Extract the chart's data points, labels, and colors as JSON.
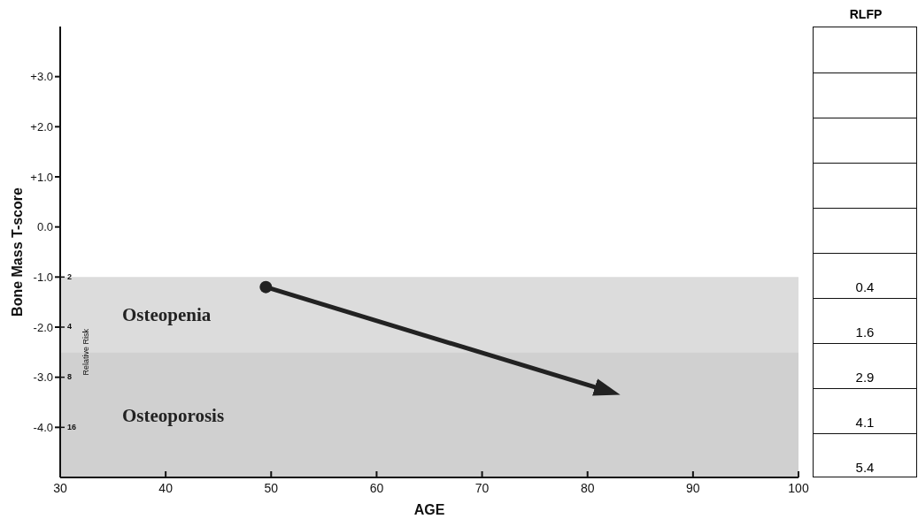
{
  "chart_data": [
    {
      "type": "line",
      "xlabel": "AGE",
      "ylabel": "Bone Mass T-score",
      "y2label": "Relative Risk",
      "x": [
        49.5,
        82.3
      ],
      "series": [
        {
          "color": "#222222",
          "values": [
            -1.2,
            -3.3
          ]
        }
      ],
      "marker": "circle",
      "xlim": [
        30,
        100
      ],
      "xticks": [
        30,
        40,
        50,
        60,
        70,
        80,
        90,
        100
      ],
      "ylim": [
        -5,
        4
      ],
      "yticks": [
        {
          "value": 3,
          "label": "+3.0"
        },
        {
          "value": 2,
          "label": "+2.0"
        },
        {
          "value": 1,
          "label": "+1.0"
        },
        {
          "value": 0,
          "label": "0.0"
        },
        {
          "value": -1,
          "label": "-1.0"
        },
        {
          "value": -2,
          "label": "-2.0"
        },
        {
          "value": -3,
          "label": "-3.0"
        },
        {
          "value": -4,
          "label": "-4.0"
        }
      ],
      "log": "y2",
      "y2lim": [
        32,
        0.0625
      ],
      "y2ticks": [
        2,
        4,
        8,
        16
      ],
      "bands": [
        {
          "axis": "y",
          "from": -2.5,
          "to": -1,
          "label": "Osteopenia",
          "color": "#dcdcdc"
        },
        {
          "axis": "y",
          "from": -5,
          "to": -2.5,
          "label": "Osteoporosis",
          "color": "#d0d0d0"
        }
      ],
      "grid": false,
      "legend": false
    },
    {
      "type": "other",
      "title": "RLFP",
      "annotations": [
        "0.4",
        "1.6",
        "2.9",
        "4.1",
        "5.4"
      ]
    }
  ]
}
